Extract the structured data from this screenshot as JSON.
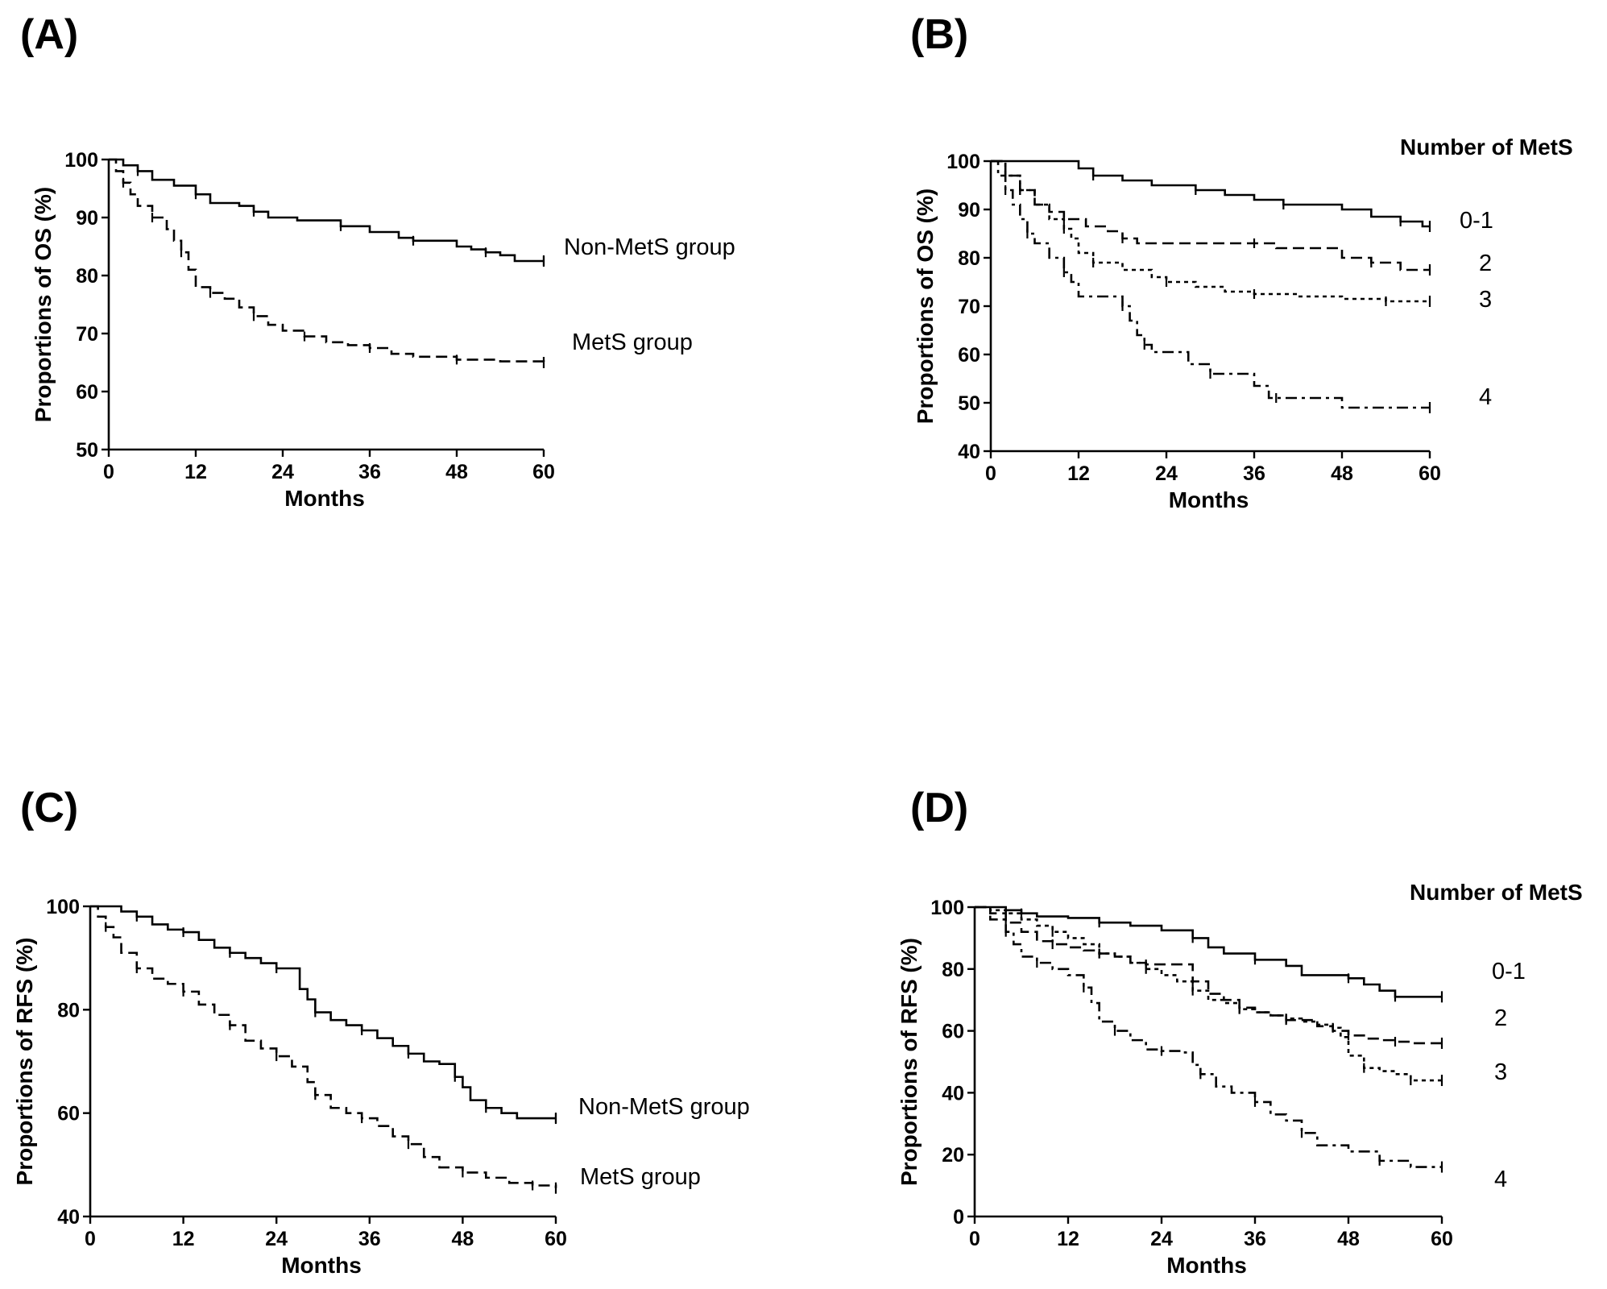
{
  "chart_data": [
    {
      "panel": "(A)",
      "type": "line",
      "subtype": "kaplan-meier",
      "xlabel": "Months",
      "ylabel": "Proportions of OS (%)",
      "xlim": [
        0,
        60
      ],
      "ylim": [
        50,
        100
      ],
      "xticks": [
        0,
        12,
        24,
        36,
        48,
        60
      ],
      "yticks": [
        50,
        60,
        70,
        80,
        90,
        100
      ],
      "legend_title": "",
      "series": [
        {
          "name": "Non-MetS group",
          "style": "solid",
          "x": [
            0,
            2,
            4,
            6,
            9,
            12,
            14,
            18,
            20,
            22,
            26,
            32,
            36,
            40,
            42,
            48,
            50,
            52,
            54,
            56,
            60
          ],
          "y": [
            100,
            99,
            98,
            96.5,
            95.5,
            94,
            92.5,
            92,
            91,
            90,
            89.5,
            88.5,
            87.5,
            86.5,
            86,
            85,
            84.5,
            84,
            83.5,
            82.5,
            82.5
          ]
        },
        {
          "name": "MetS group",
          "style": "dashed",
          "x": [
            0,
            1,
            2,
            3,
            4,
            6,
            8,
            9,
            10,
            11,
            12,
            14,
            16,
            18,
            20,
            22,
            24,
            27,
            30,
            33,
            36,
            39,
            42,
            48,
            54,
            60
          ],
          "y": [
            100,
            98,
            96,
            94,
            92,
            90,
            88,
            86,
            84,
            81,
            78,
            77,
            76,
            74.5,
            73,
            71.5,
            70.5,
            69.5,
            68.5,
            68,
            67.5,
            66.5,
            66,
            65.5,
            65.2,
            65
          ]
        }
      ]
    },
    {
      "panel": "(B)",
      "type": "line",
      "subtype": "kaplan-meier",
      "xlabel": "Months",
      "ylabel": "Proportions of OS (%)",
      "xlim": [
        0,
        60
      ],
      "ylim": [
        40,
        100
      ],
      "xticks": [
        0,
        12,
        24,
        36,
        48,
        60
      ],
      "yticks": [
        40,
        50,
        60,
        70,
        80,
        90,
        100
      ],
      "legend_title": "Number of MetS",
      "series": [
        {
          "name": "0-1",
          "style": "solid",
          "x": [
            0,
            12,
            14,
            18,
            22,
            28,
            32,
            36,
            40,
            48,
            52,
            56,
            59,
            60
          ],
          "y": [
            100,
            98.5,
            97,
            96,
            95,
            94,
            93,
            92,
            91,
            90,
            88.5,
            87.5,
            86.5,
            86.5
          ]
        },
        {
          "name": "2",
          "style": "dashed",
          "x": [
            0,
            2,
            4,
            6,
            8,
            10,
            13,
            16,
            18,
            20,
            24,
            36,
            39,
            48,
            52,
            56,
            60
          ],
          "y": [
            100,
            97,
            94,
            91,
            89.5,
            88,
            86.5,
            85.5,
            84,
            83,
            83,
            83,
            82,
            80,
            79,
            77.5,
            77.5
          ]
        },
        {
          "name": "3",
          "style": "dotted",
          "x": [
            0,
            2,
            4,
            6,
            8,
            10,
            11,
            12,
            14,
            18,
            22,
            24,
            28,
            32,
            36,
            42,
            48,
            54,
            60
          ],
          "y": [
            100,
            97,
            94,
            91,
            88,
            86,
            84,
            81,
            79,
            77.5,
            76,
            75,
            74,
            73,
            72.5,
            72,
            71.5,
            71,
            71
          ]
        },
        {
          "name": "4",
          "style": "dashdot",
          "x": [
            0,
            1,
            2,
            3,
            4,
            5,
            6,
            8,
            10,
            11,
            12,
            18,
            19,
            20,
            21,
            22,
            27,
            30,
            36,
            38,
            39,
            48,
            60
          ],
          "y": [
            100,
            97,
            94,
            91,
            88,
            85,
            83,
            80,
            77,
            75,
            72,
            70,
            67,
            64,
            62,
            60.5,
            58,
            56,
            53.5,
            51,
            51,
            49,
            49
          ]
        }
      ]
    },
    {
      "panel": "(C)",
      "type": "line",
      "subtype": "kaplan-meier",
      "xlabel": "Months",
      "ylabel": "Proportions of RFS (%)",
      "xlim": [
        0,
        60
      ],
      "ylim": [
        40,
        100
      ],
      "xticks": [
        0,
        12,
        24,
        36,
        48,
        60
      ],
      "yticks": [
        40,
        60,
        80,
        100
      ],
      "legend_title": "",
      "series": [
        {
          "name": "Non-MetS group",
          "style": "solid",
          "x": [
            0,
            4,
            6,
            8,
            10,
            12,
            14,
            16,
            18,
            20,
            22,
            24,
            27,
            28,
            29,
            31,
            33,
            35,
            37,
            39,
            41,
            43,
            45,
            47,
            48,
            49,
            51,
            53,
            55,
            60
          ],
          "y": [
            100,
            99,
            98,
            96.5,
            95.5,
            95,
            93.5,
            92,
            91,
            90,
            89,
            88,
            84,
            82,
            79.5,
            78,
            77,
            76,
            74.5,
            73,
            71.5,
            70,
            69.5,
            67,
            65,
            62.5,
            61,
            60,
            59,
            59
          ]
        },
        {
          "name": "MetS group",
          "style": "dashed",
          "x": [
            0,
            1,
            2,
            3,
            4,
            6,
            8,
            10,
            12,
            14,
            16,
            18,
            20,
            22,
            24,
            26,
            28,
            29,
            31,
            33,
            35,
            37,
            39,
            41,
            43,
            45,
            48,
            51,
            54,
            57,
            60
          ],
          "y": [
            100,
            98,
            96,
            94,
            91,
            88,
            86,
            85,
            83.5,
            81,
            79,
            77,
            74,
            72.5,
            71,
            69,
            66,
            63.5,
            61,
            60,
            59,
            57.5,
            55.5,
            54,
            51.5,
            49.5,
            48.5,
            47.5,
            46.5,
            46,
            45.5
          ]
        }
      ]
    },
    {
      "panel": "(D)",
      "type": "line",
      "subtype": "kaplan-meier",
      "xlabel": "Months",
      "ylabel": "Proportions of RFS (%)",
      "xlim": [
        0,
        60
      ],
      "ylim": [
        0,
        100
      ],
      "xticks": [
        0,
        12,
        24,
        36,
        48,
        60
      ],
      "yticks": [
        0,
        20,
        40,
        60,
        80,
        100
      ],
      "legend_title": "Number of MetS",
      "series": [
        {
          "name": "0-1",
          "style": "solid",
          "x": [
            0,
            4,
            6,
            8,
            12,
            16,
            20,
            24,
            28,
            30,
            32,
            36,
            40,
            42,
            48,
            50,
            52,
            54,
            60
          ],
          "y": [
            100,
            99,
            98,
            97,
            96.5,
            95,
            94,
            92.5,
            90,
            87,
            85,
            83,
            81,
            78,
            77,
            75,
            73,
            71,
            71
          ]
        },
        {
          "name": "2",
          "style": "dashed",
          "x": [
            0,
            2,
            4,
            6,
            8,
            10,
            12,
            14,
            16,
            18,
            20,
            22,
            24,
            27,
            28,
            30,
            32,
            34,
            36,
            38,
            40,
            44,
            46,
            48,
            50,
            52,
            54,
            56,
            60
          ],
          "y": [
            100,
            98,
            95,
            92,
            89,
            88,
            87,
            86,
            85,
            84,
            82,
            81.5,
            81.5,
            81.5,
            76,
            72,
            70,
            67.5,
            66,
            65,
            63.5,
            61.5,
            60,
            58.5,
            57.5,
            57,
            56.5,
            56,
            56
          ]
        },
        {
          "name": "3",
          "style": "dotted",
          "x": [
            0,
            2,
            4,
            6,
            8,
            10,
            12,
            14,
            16,
            18,
            20,
            22,
            24,
            26,
            28,
            30,
            32,
            34,
            36,
            38,
            40,
            42,
            44,
            46,
            47,
            48,
            50,
            52,
            54,
            56,
            60
          ],
          "y": [
            100,
            99,
            98,
            96,
            94,
            92,
            90,
            88,
            85,
            84,
            82,
            80,
            78,
            76,
            73,
            70,
            69,
            67,
            66,
            65,
            64,
            63,
            62,
            61,
            58,
            52,
            48,
            47,
            46,
            44,
            44
          ]
        },
        {
          "name": "4",
          "style": "dashdot",
          "x": [
            0,
            2,
            4,
            5,
            6,
            8,
            10,
            12,
            14,
            15,
            16,
            18,
            20,
            22,
            24,
            27,
            28,
            29,
            31,
            33,
            36,
            38,
            40,
            42,
            44,
            48,
            52,
            56,
            60
          ],
          "y": [
            100,
            96,
            92,
            88,
            84,
            82,
            80,
            78,
            74,
            69,
            63,
            60,
            57,
            54,
            53.5,
            53,
            49,
            46,
            42,
            40,
            37,
            33,
            31,
            27,
            23,
            21,
            18,
            16,
            16
          ]
        }
      ]
    }
  ]
}
